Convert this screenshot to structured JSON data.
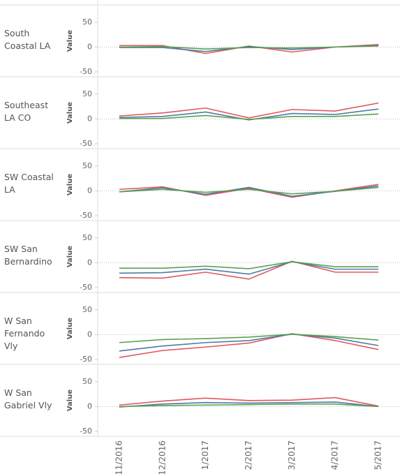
{
  "chart_data": {
    "type": "line",
    "y_label": "Value",
    "categories": [
      "11/2016",
      "12/2016",
      "1/2017",
      "2/2017",
      "3/2017",
      "4/2017",
      "5/2017"
    ],
    "ylim": [
      -60,
      85
    ],
    "yticks": [
      -50,
      0,
      50
    ],
    "zero_line": true,
    "facets": [
      {
        "label": "South Coastal LA",
        "series": [
          {
            "color": "#e15759",
            "values": [
              3,
              3,
              -13,
              2,
              -10,
              0,
              5
            ]
          },
          {
            "color": "#4e79a7",
            "values": [
              -1,
              -1,
              -9,
              1,
              -5,
              0,
              3
            ]
          },
          {
            "color": "#59a14f",
            "values": [
              0,
              1,
              -4,
              -1,
              -2,
              0,
              2
            ]
          }
        ]
      },
      {
        "label": "Southeast LA CO",
        "series": [
          {
            "color": "#e15759",
            "values": [
              6,
              12,
              22,
              2,
              19,
              16,
              32
            ]
          },
          {
            "color": "#4e79a7",
            "values": [
              3,
              5,
              14,
              -2,
              11,
              9,
              20
            ]
          },
          {
            "color": "#59a14f",
            "values": [
              1,
              1,
              7,
              -1,
              5,
              5,
              10
            ]
          }
        ]
      },
      {
        "label": "SW Coastal LA",
        "series": [
          {
            "color": "#e15759",
            "values": [
              3,
              8,
              -9,
              5,
              -13,
              0,
              13
            ]
          },
          {
            "color": "#4e79a7",
            "values": [
              -2,
              6,
              -7,
              7,
              -11,
              -1,
              10
            ]
          },
          {
            "color": "#59a14f",
            "values": [
              -2,
              3,
              -3,
              3,
              -6,
              -1,
              7
            ]
          }
        ]
      },
      {
        "label": "SW San Bernardino",
        "series": [
          {
            "color": "#e15759",
            "values": [
              -30,
              -31,
              -19,
              -33,
              3,
              -19,
              -19
            ]
          },
          {
            "color": "#4e79a7",
            "values": [
              -21,
              -20,
              -13,
              -23,
              2,
              -13,
              -13
            ]
          },
          {
            "color": "#59a14f",
            "values": [
              -11,
              -11,
              -7,
              -12,
              2,
              -8,
              -8
            ]
          }
        ]
      },
      {
        "label": "W San Fernando Vly",
        "series": [
          {
            "color": "#e15759",
            "values": [
              -46,
              -32,
              -25,
              -17,
              2,
              -12,
              -30
            ]
          },
          {
            "color": "#4e79a7",
            "values": [
              -33,
              -23,
              -16,
              -12,
              1,
              -7,
              -22
            ]
          },
          {
            "color": "#59a14f",
            "values": [
              -16,
              -10,
              -8,
              -5,
              1,
              -4,
              -11
            ]
          }
        ]
      },
      {
        "label": "W San Gabriel Vly",
        "series": [
          {
            "color": "#e15759",
            "values": [
              3,
              11,
              17,
              12,
              13,
              18,
              1
            ]
          },
          {
            "color": "#4e79a7",
            "values": [
              -1,
              5,
              8,
              7,
              8,
              9,
              0
            ]
          },
          {
            "color": "#59a14f",
            "values": [
              0,
              2,
              3,
              4,
              5,
              5,
              0
            ]
          }
        ]
      }
    ]
  }
}
